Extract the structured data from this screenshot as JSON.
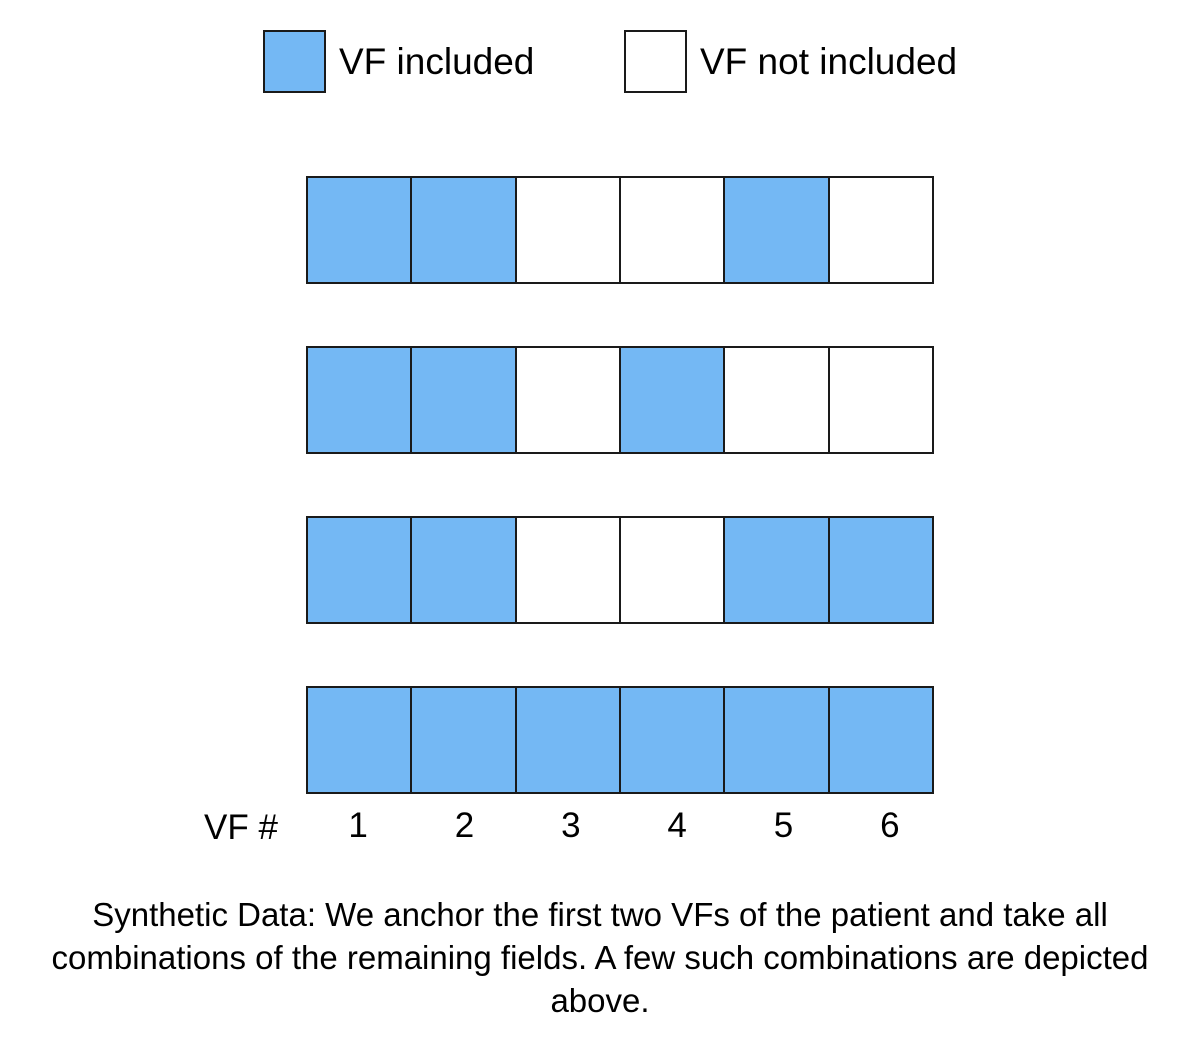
{
  "legend": {
    "included": {
      "label": "VF included",
      "color": "#74b8f4"
    },
    "not_included": {
      "label": "VF not included",
      "color": "#ffffff"
    }
  },
  "rows": [
    [
      1,
      1,
      0,
      0,
      1,
      0
    ],
    [
      1,
      1,
      0,
      1,
      0,
      0
    ],
    [
      1,
      1,
      0,
      0,
      1,
      1
    ],
    [
      1,
      1,
      1,
      1,
      1,
      1
    ]
  ],
  "axis": {
    "label": "VF #",
    "numbers": [
      "1",
      "2",
      "3",
      "4",
      "5",
      "6"
    ]
  },
  "caption": "Synthetic Data: We anchor the first two VFs of the patient and take all combinations of the remaining fields. A few such combinations are depicted above."
}
